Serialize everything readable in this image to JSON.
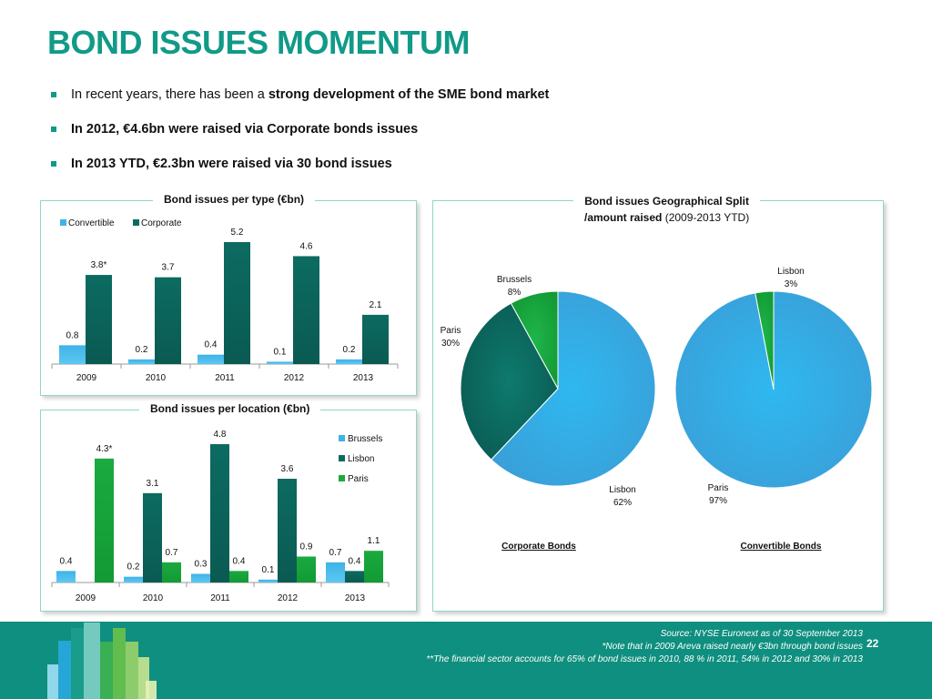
{
  "title": "BOND ISSUES MOMENTUM",
  "bullets": [
    {
      "plain": "In recent years, there has been a ",
      "bold": "strong development of the SME bond market"
    },
    {
      "plain": "",
      "bold": "In 2012, €4.6bn were raised via Corporate bonds issues"
    },
    {
      "plain": "",
      "bold": "In 2013 YTD, €2.3bn were raised via 30 bond issues"
    }
  ],
  "colors": {
    "teal_title": "#119a88",
    "convertible": "#3fb2e6",
    "corporate": "#0c6b61",
    "brussels": "#3fb2e6",
    "lisbon": "#0c6b61",
    "paris": "#1aaa3e",
    "footer": "#0f8f7f"
  },
  "chart_data": [
    {
      "type": "bar",
      "title": "Bond issues per type (€bn)",
      "categories": [
        "2009",
        "2010",
        "2011",
        "2012",
        "2013"
      ],
      "series": [
        {
          "name": "Convertible",
          "values": [
            0.8,
            0.2,
            0.4,
            0.1,
            0.2
          ],
          "labels": [
            "0.8",
            "0.2",
            "0.4",
            "0.1",
            "0.2"
          ]
        },
        {
          "name": "Corporate",
          "values": [
            3.8,
            3.7,
            5.2,
            4.6,
            2.1
          ],
          "labels": [
            "3.8*",
            "3.7",
            "5.2",
            "4.6",
            "2.1"
          ]
        }
      ],
      "ylim": [
        0,
        5.2
      ],
      "legend": "top-left",
      "grid": false
    },
    {
      "type": "bar",
      "title": "Bond issues per location (€bn)",
      "categories": [
        "2009",
        "2010",
        "2011",
        "2012",
        "2013"
      ],
      "series": [
        {
          "name": "Brussels",
          "values": [
            0.4,
            0.2,
            0.3,
            0.1,
            0.7
          ],
          "labels": [
            "0.4",
            "0.2",
            "0.3",
            "0.1",
            "0.7"
          ]
        },
        {
          "name": "Lisbon",
          "values": [
            0.0,
            3.1,
            4.8,
            3.6,
            0.4
          ],
          "labels": [
            "",
            "3.1",
            "4.8",
            "3.6",
            "0.4"
          ]
        },
        {
          "name": "Paris",
          "values": [
            4.3,
            0.7,
            0.4,
            0.9,
            1.1
          ],
          "labels": [
            "4.3*",
            "0.7",
            "0.4",
            "0.9",
            "1.1"
          ]
        }
      ],
      "ylim": [
        0,
        4.8
      ],
      "legend": "right",
      "grid": false
    },
    {
      "type": "pie",
      "title": "Corporate Bonds",
      "slices": [
        {
          "name": "Lisbon",
          "value": 62,
          "label": "62%"
        },
        {
          "name": "Paris",
          "value": 30,
          "label": "30%"
        },
        {
          "name": "Brussels",
          "value": 8,
          "label": "8%"
        }
      ]
    },
    {
      "type": "pie",
      "title": "Convertible Bonds",
      "slices": [
        {
          "name": "Paris",
          "value": 97,
          "label": "97%"
        },
        {
          "name": "Lisbon",
          "value": 3,
          "label": "3%"
        }
      ]
    }
  ],
  "geo_panel": {
    "title_bold1": "Bond issues Geographical Split",
    "title_bold2": "/amount raised",
    "title_plain": " (2009-2013 YTD)"
  },
  "footnotes": [
    "Source: NYSE Euronext  as of 30 September 2013",
    "*Note that in 2009 Areva raised nearly €3bn  through bond issues",
    "**The financial sector accounts for 65%  of bond issues in 2010, 88 % in 2011, 54% in 2012 and 30% in 2013"
  ],
  "page_number": "22"
}
